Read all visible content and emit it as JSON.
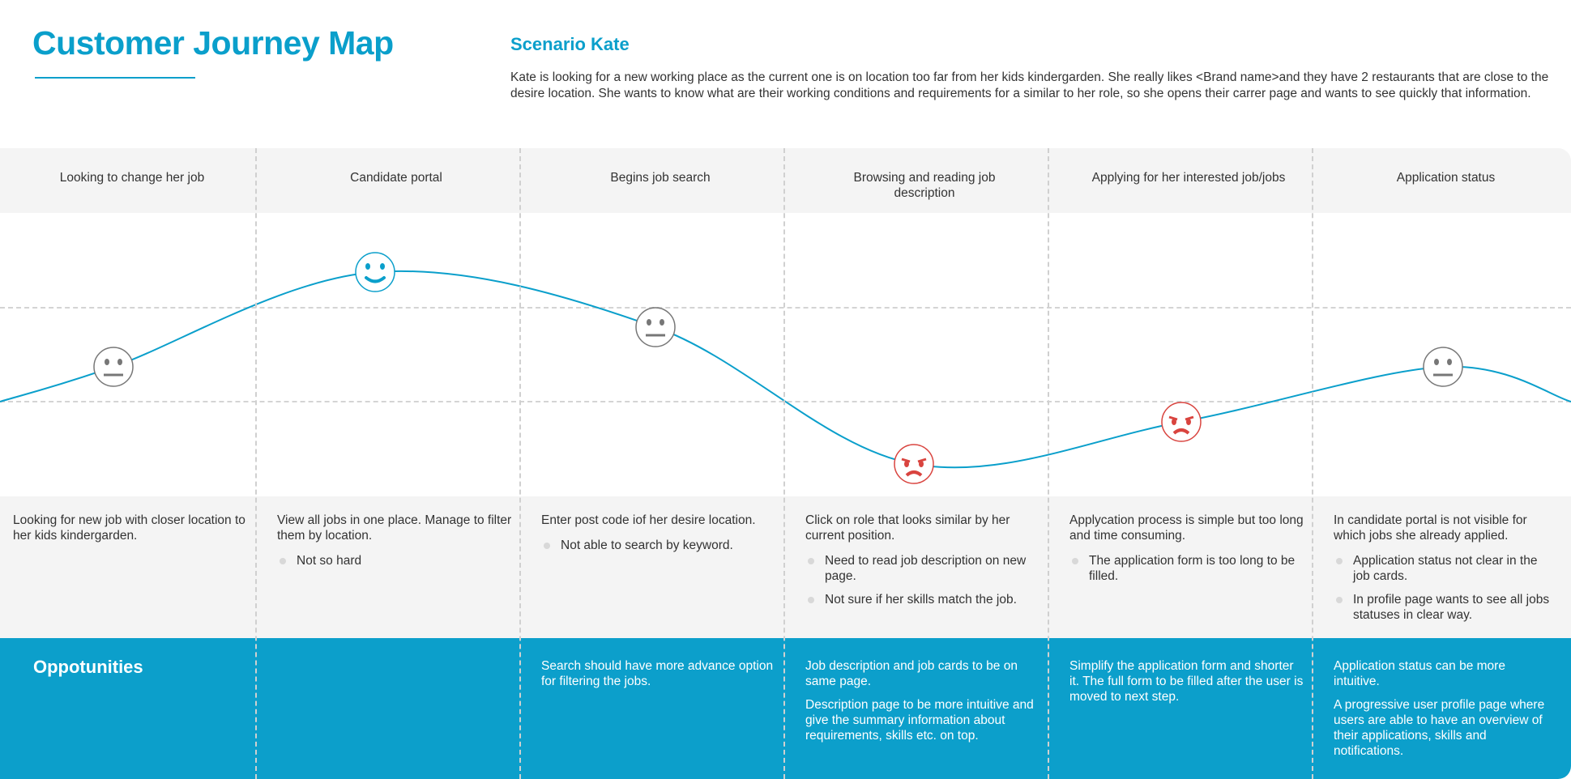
{
  "header": {
    "title": "Customer Journey Map",
    "scenario_title": "Scenario Kate",
    "scenario_text": "Kate is looking for a new working place as the current one is on location too far from her kids kindergarden. She really likes <Brand name>and they have 2 restaurants that are close to the desire location. She wants to know what are their working conditions and requirements for a similar to her role, so she opens their carrer page and wants to see quickly that information."
  },
  "colors": {
    "accent": "#0a9fcb",
    "opportunity_bg": "#0c9fcb",
    "angry": "#d9443f",
    "neutral": "#777777",
    "row_bg": "#f4f4f4"
  },
  "stages": [
    {
      "title": "Looking to change her job",
      "mood": "neutral",
      "pain": "Looking for new job with closer location to her kids kindergarden.",
      "bullets": [],
      "opportunities": []
    },
    {
      "title": "Candidate portal",
      "mood": "happy",
      "pain": "View all jobs in one place. Manage to filter them by location.",
      "bullets": [
        "Not so hard"
      ],
      "opportunities": []
    },
    {
      "title": "Begins job search",
      "mood": "neutral",
      "pain": "Enter post code iof her desire location.",
      "bullets": [
        "Not able to search by keyword."
      ],
      "opportunities": [
        "Search should have more advance option for filtering the jobs."
      ]
    },
    {
      "title": "Browsing and reading job description",
      "mood": "angry",
      "pain": "Click on role that looks similar by her current position.",
      "bullets": [
        "Need to read job description on new page.",
        "Not sure if her skills match the job."
      ],
      "opportunities": [
        "Job description and job cards to be on same page.",
        "Description page to be more intuitive and give the summary information about requirements, skills etc. on top."
      ]
    },
    {
      "title": "Applying for her interested job/jobs",
      "mood": "angry",
      "pain": "Applycation process is simple but too long and time consuming.",
      "bullets": [
        "The application form is too long to be filled."
      ],
      "opportunities": [
        "Simplify the application form and shorter it. The full form to be filled after the user is moved to next step."
      ]
    },
    {
      "title": "Application status",
      "mood": "neutral",
      "pain": "In candidate portal is not visible for which jobs she already applied.",
      "bullets": [
        "Application status not clear in the job cards.",
        "In profile page wants to see all jobs statuses in clear way."
      ],
      "opportunities": [
        "Application status can be more intuitive.",
        "A progressive user profile page where users are able to have an overview of their applications, skills and notifications."
      ]
    }
  ],
  "opportunities_label": "Oppotunities"
}
